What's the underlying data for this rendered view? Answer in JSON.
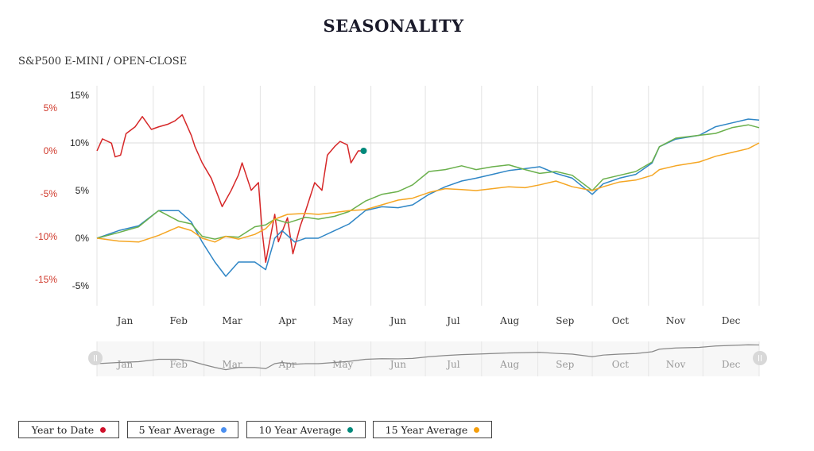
{
  "title": "SEASONALITY",
  "subtitle": "S&P500 E-MINI / OPEN-CLOSE",
  "legend": [
    {
      "label": "Year to Date",
      "color": "#d0102a"
    },
    {
      "label": "5 Year Average",
      "color": "#4a8ff0"
    },
    {
      "label": "10 Year Average",
      "color": "#00897b"
    },
    {
      "label": "15 Year Average",
      "color": "#f59e0b"
    }
  ],
  "chart_data": {
    "type": "line",
    "title": "SEASONALITY",
    "subtitle": "S&P500 E-MINI / OPEN-CLOSE",
    "x_unit": "day of year",
    "xlim": [
      0,
      365
    ],
    "months": [
      "Jan",
      "Feb",
      "Mar",
      "Apr",
      "May",
      "Jun",
      "Jul",
      "Aug",
      "Sep",
      "Oct",
      "Nov",
      "Dec"
    ],
    "left_axis": {
      "ticks": [
        "15%",
        "10%",
        "5%",
        "0%",
        "-5%"
      ],
      "values": [
        15,
        10,
        5,
        0,
        -5
      ],
      "ylim": [
        -7,
        15.5
      ]
    },
    "right_axis": {
      "ticks": [
        "5%",
        "0%",
        "-5%",
        "-10%",
        "-15%"
      ],
      "values": [
        5,
        0,
        -5,
        -10,
        -15
      ],
      "color": "#d0392b"
    },
    "grid": true,
    "series": [
      {
        "name": "Year to Date",
        "axis": "red",
        "color": "#d62728",
        "points": [
          [
            0,
            0
          ],
          [
            3,
            1.4
          ],
          [
            8,
            0.9
          ],
          [
            10,
            -0.7
          ],
          [
            13,
            -0.5
          ],
          [
            16,
            2
          ],
          [
            21,
            2.8
          ],
          [
            25,
            4
          ],
          [
            30,
            2.5
          ],
          [
            34,
            2.8
          ],
          [
            39,
            3.1
          ],
          [
            43,
            3.5
          ],
          [
            47,
            4.2
          ],
          [
            52,
            1.8
          ],
          [
            54,
            0.5
          ],
          [
            58,
            -1.4
          ],
          [
            63,
            -3.2
          ],
          [
            69,
            -6.5
          ],
          [
            74,
            -4.6
          ],
          [
            78,
            -2.8
          ],
          [
            80,
            -1.4
          ],
          [
            85,
            -4.6
          ],
          [
            89,
            -3.7
          ],
          [
            91,
            -9.3
          ],
          [
            93,
            -13
          ],
          [
            98,
            -7.4
          ],
          [
            100,
            -10.6
          ],
          [
            105,
            -7.8
          ],
          [
            108,
            -12
          ],
          [
            112,
            -8.8
          ],
          [
            115,
            -7
          ],
          [
            120,
            -3.7
          ],
          [
            124,
            -4.6
          ],
          [
            127,
            -0.5
          ],
          [
            131,
            0.5
          ],
          [
            134,
            1.1
          ],
          [
            138,
            0.7
          ],
          [
            140,
            -1.4
          ],
          [
            144,
            0
          ],
          [
            147,
            0
          ]
        ]
      },
      {
        "name": "5 Year Average",
        "axis": "black",
        "color": "#2f86c6",
        "points": [
          [
            0,
            0
          ],
          [
            12,
            0.8
          ],
          [
            23,
            1.3
          ],
          [
            34,
            2.9
          ],
          [
            45,
            2.9
          ],
          [
            52,
            1.7
          ],
          [
            58,
            -0.4
          ],
          [
            65,
            -2.5
          ],
          [
            71,
            -4
          ],
          [
            78,
            -2.5
          ],
          [
            87,
            -2.5
          ],
          [
            93,
            -3.3
          ],
          [
            98,
            0
          ],
          [
            102,
            0.8
          ],
          [
            109,
            -0.4
          ],
          [
            115,
            0
          ],
          [
            122,
            0
          ],
          [
            131,
            0.8
          ],
          [
            139,
            1.5
          ],
          [
            148,
            2.9
          ],
          [
            157,
            3.3
          ],
          [
            166,
            3.2
          ],
          [
            174,
            3.5
          ],
          [
            183,
            4.6
          ],
          [
            192,
            5.4
          ],
          [
            201,
            6
          ],
          [
            209,
            6.3
          ],
          [
            218,
            6.7
          ],
          [
            227,
            7.1
          ],
          [
            236,
            7.3
          ],
          [
            244,
            7.5
          ],
          [
            253,
            6.8
          ],
          [
            262,
            6.3
          ],
          [
            273,
            4.6
          ],
          [
            279,
            5.7
          ],
          [
            288,
            6.3
          ],
          [
            297,
            6.7
          ],
          [
            306,
            7.9
          ],
          [
            310,
            9.6
          ],
          [
            319,
            10.4
          ],
          [
            332,
            10.8
          ],
          [
            341,
            11.7
          ],
          [
            350,
            12.1
          ],
          [
            359,
            12.5
          ],
          [
            365,
            12.4
          ]
        ]
      },
      {
        "name": "10 Year Average",
        "axis": "black",
        "color": "#6ab04c",
        "points": [
          [
            0,
            0
          ],
          [
            12,
            0.6
          ],
          [
            23,
            1.2
          ],
          [
            34,
            2.9
          ],
          [
            45,
            1.8
          ],
          [
            52,
            1.5
          ],
          [
            58,
            0.2
          ],
          [
            65,
            -0.1
          ],
          [
            71,
            0.2
          ],
          [
            78,
            0.1
          ],
          [
            87,
            1.2
          ],
          [
            93,
            1.4
          ],
          [
            98,
            2
          ],
          [
            105,
            1.6
          ],
          [
            115,
            2.2
          ],
          [
            122,
            2
          ],
          [
            131,
            2.3
          ],
          [
            139,
            2.8
          ],
          [
            148,
            3.9
          ],
          [
            157,
            4.6
          ],
          [
            166,
            4.9
          ],
          [
            174,
            5.6
          ],
          [
            183,
            7
          ],
          [
            192,
            7.2
          ],
          [
            201,
            7.6
          ],
          [
            209,
            7.2
          ],
          [
            218,
            7.5
          ],
          [
            227,
            7.7
          ],
          [
            236,
            7.2
          ],
          [
            244,
            6.8
          ],
          [
            253,
            7
          ],
          [
            262,
            6.6
          ],
          [
            273,
            5
          ],
          [
            279,
            6.2
          ],
          [
            288,
            6.6
          ],
          [
            297,
            7
          ],
          [
            306,
            8
          ],
          [
            310,
            9.6
          ],
          [
            319,
            10.5
          ],
          [
            332,
            10.8
          ],
          [
            341,
            11
          ],
          [
            350,
            11.6
          ],
          [
            359,
            11.9
          ],
          [
            365,
            11.6
          ]
        ]
      },
      {
        "name": "15 Year Average",
        "axis": "black",
        "color": "#f5a623",
        "points": [
          [
            0,
            0
          ],
          [
            12,
            -0.3
          ],
          [
            23,
            -0.4
          ],
          [
            34,
            0.3
          ],
          [
            45,
            1.2
          ],
          [
            52,
            0.8
          ],
          [
            58,
            0
          ],
          [
            65,
            -0.4
          ],
          [
            71,
            0.2
          ],
          [
            78,
            -0.1
          ],
          [
            87,
            0.4
          ],
          [
            93,
            1
          ],
          [
            98,
            2
          ],
          [
            105,
            2.5
          ],
          [
            115,
            2.6
          ],
          [
            122,
            2.5
          ],
          [
            131,
            2.7
          ],
          [
            139,
            2.9
          ],
          [
            148,
            3
          ],
          [
            157,
            3.5
          ],
          [
            166,
            4
          ],
          [
            174,
            4.2
          ],
          [
            183,
            4.8
          ],
          [
            192,
            5.2
          ],
          [
            201,
            5.1
          ],
          [
            209,
            5
          ],
          [
            218,
            5.2
          ],
          [
            227,
            5.4
          ],
          [
            236,
            5.3
          ],
          [
            244,
            5.6
          ],
          [
            253,
            6
          ],
          [
            262,
            5.4
          ],
          [
            273,
            5
          ],
          [
            279,
            5.4
          ],
          [
            288,
            5.9
          ],
          [
            297,
            6.1
          ],
          [
            306,
            6.6
          ],
          [
            310,
            7.2
          ],
          [
            319,
            7.6
          ],
          [
            332,
            8
          ],
          [
            341,
            8.6
          ],
          [
            350,
            9
          ],
          [
            359,
            9.4
          ],
          [
            365,
            10
          ]
        ]
      }
    ]
  }
}
